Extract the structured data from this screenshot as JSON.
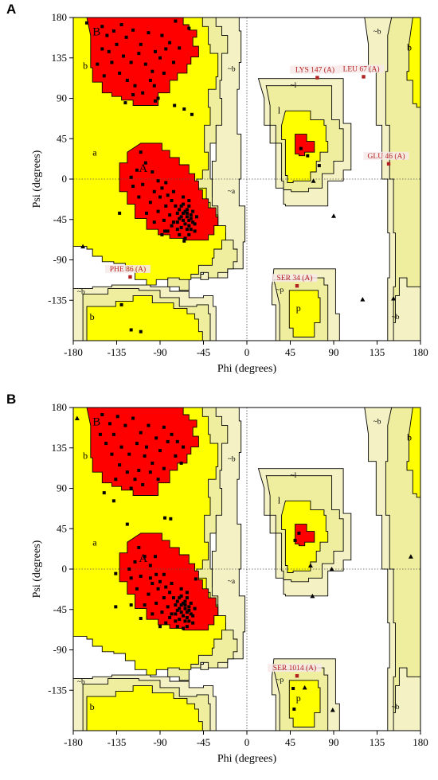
{
  "colors": {
    "core": "#ff0000",
    "allowed": "#ffff00",
    "generous": "#eeee9e",
    "generous_pale": "#f4f2c4",
    "outlier": "#b22222",
    "point": "#000000"
  },
  "chart_data": [
    {
      "type": "scatter",
      "panel_label": "A",
      "xlabel": "Phi (degrees)",
      "ylabel": "Psi (degrees)",
      "xlim": [
        -180,
        180
      ],
      "ylim": [
        -180,
        180
      ],
      "xticks": [
        "-180",
        "-135",
        "-90",
        "-45",
        "0",
        "45",
        "90",
        "135",
        "180"
      ],
      "yticks": [
        "180",
        "135",
        "90",
        "45",
        "0",
        "-45",
        "-90",
        "-135"
      ],
      "region_labels": [
        {
          "text": "B",
          "phi": -160,
          "psi": 160,
          "size": "large"
        },
        {
          "text": "b",
          "phi": -170,
          "psi": 123,
          "size": "normal"
        },
        {
          "text": "a",
          "phi": -160,
          "psi": 26,
          "size": "normal"
        },
        {
          "text": "A",
          "phi": -112,
          "psi": 8,
          "size": "large"
        },
        {
          "text": "~b",
          "phi": -20,
          "psi": 120,
          "size": "small"
        },
        {
          "text": "~a",
          "phi": -20,
          "psi": -16,
          "size": "small"
        },
        {
          "text": "~l",
          "phi": 45,
          "psi": 102,
          "size": "small"
        },
        {
          "text": "l",
          "phi": 32,
          "psi": 73,
          "size": "normal"
        },
        {
          "text": "~b",
          "phi": -176,
          "psi": -128,
          "size": "small"
        },
        {
          "text": "b",
          "phi": -163,
          "psi": -157,
          "size": "normal"
        },
        {
          "text": "~p",
          "phi": 30,
          "psi": -126,
          "size": "small"
        },
        {
          "text": "p",
          "phi": 51,
          "psi": -147,
          "size": "normal"
        },
        {
          "text": "~b",
          "phi": 131,
          "psi": 162,
          "size": "small"
        },
        {
          "text": "b",
          "phi": 166,
          "psi": 143,
          "size": "normal"
        },
        {
          "text": "~b",
          "phi": 150,
          "psi": -156,
          "size": "small"
        }
      ],
      "outliers": [
        {
          "label": "LYS 147 (A)",
          "phi": 73,
          "psi": 113
        },
        {
          "label": "LEU 67 (A)",
          "phi": 121,
          "psi": 114
        },
        {
          "label": "GLU 46 (A)",
          "phi": 147,
          "psi": 17
        },
        {
          "label": "PHE 86 (A)",
          "phi": -121,
          "psi": -109
        },
        {
          "label": "SER 34 (A)",
          "phi": 52,
          "psi": -119
        }
      ],
      "triangles": [
        {
          "phi": 90,
          "psi": -41
        },
        {
          "phi": 120,
          "psi": -134
        },
        {
          "phi": 152,
          "psi": -133
        },
        {
          "phi": -170,
          "psi": -75
        },
        {
          "phi": 69,
          "psi": -2
        }
      ],
      "residues_core": [
        [
          -150,
          170
        ],
        [
          -145,
          160
        ],
        [
          -138,
          165
        ],
        [
          -130,
          172
        ],
        [
          -125,
          158
        ],
        [
          -118,
          166
        ],
        [
          -110,
          150
        ],
        [
          -102,
          163
        ],
        [
          -95,
          142
        ],
        [
          -88,
          160
        ],
        [
          -80,
          152
        ],
        [
          -74,
          176
        ],
        [
          -143,
          142
        ],
        [
          -135,
          150
        ],
        [
          -128,
          137
        ],
        [
          -120,
          130
        ],
        [
          -112,
          140
        ],
        [
          -105,
          128
        ],
        [
          -98,
          120
        ],
        [
          -90,
          135
        ],
        [
          -84,
          145
        ],
        [
          -76,
          130
        ],
        [
          -70,
          146
        ],
        [
          -140,
          130
        ],
        [
          -132,
          118
        ],
        [
          -124,
          110
        ],
        [
          -116,
          104
        ],
        [
          -108,
          96
        ],
        [
          -100,
          110
        ],
        [
          -92,
          90
        ],
        [
          -86,
          118
        ],
        [
          -150,
          145
        ],
        [
          -155,
          128
        ],
        [
          -148,
          115
        ],
        [
          -126,
          85
        ],
        [
          -118,
          94
        ],
        [
          -96,
          104
        ],
        [
          -110,
          30
        ],
        [
          -105,
          18
        ],
        [
          -98,
          8
        ],
        [
          -92,
          -2
        ],
        [
          -88,
          -10
        ],
        [
          -82,
          -18
        ],
        [
          -78,
          -24
        ],
        [
          -74,
          -30
        ],
        [
          -70,
          -34
        ],
        [
          -66,
          -38
        ],
        [
          -62,
          -42
        ],
        [
          -60,
          -46
        ],
        [
          -64,
          -50
        ],
        [
          -68,
          -54
        ],
        [
          -58,
          -40
        ],
        [
          -56,
          -48
        ],
        [
          -64,
          -36
        ],
        [
          -70,
          -44
        ],
        [
          -72,
          -38
        ],
        [
          -66,
          -28
        ],
        [
          -60,
          -30
        ],
        [
          -62,
          -56
        ],
        [
          -58,
          -56
        ],
        [
          -76,
          -48
        ],
        [
          -80,
          -40
        ],
        [
          -84,
          -30
        ],
        [
          -90,
          -20
        ],
        [
          -96,
          -14
        ],
        [
          -86,
          -46
        ],
        [
          -92,
          -36
        ],
        [
          -100,
          -26
        ],
        [
          -108,
          -6
        ],
        [
          -114,
          10
        ],
        [
          -120,
          2
        ],
        [
          -70,
          -62
        ],
        [
          -64,
          -66
        ],
        [
          -72,
          -48
        ],
        [
          -68,
          -42
        ],
        [
          -62,
          -38
        ],
        [
          -60,
          -52
        ],
        [
          -66,
          -46
        ],
        [
          -58,
          -44
        ],
        [
          -54,
          -50
        ],
        [
          -62,
          -34
        ],
        [
          -68,
          -30
        ],
        [
          -72,
          -56
        ],
        [
          -78,
          -52
        ],
        [
          -82,
          -58
        ],
        [
          -88,
          -62
        ],
        [
          -96,
          -48
        ],
        [
          -104,
          -38
        ],
        [
          -112,
          -20
        ],
        [
          -118,
          -8
        ],
        [
          -84,
          -4
        ],
        [
          -76,
          -14
        ],
        [
          -66,
          -20
        ],
        [
          -60,
          -24
        ],
        [
          -56,
          -36
        ],
        [
          -52,
          -42
        ],
        [
          -54,
          -58
        ],
        [
          -60,
          -62
        ]
      ],
      "residues_allowed": [
        [
          -60,
          168
        ],
        [
          -95,
          87
        ],
        [
          -75,
          82
        ],
        [
          -65,
          78
        ],
        [
          -57,
          72
        ],
        [
          -130,
          -140
        ],
        [
          -120,
          -168
        ],
        [
          -110,
          -170
        ],
        [
          -166,
          174
        ],
        [
          56,
          34
        ],
        [
          63,
          26
        ],
        [
          75,
          15
        ],
        [
          -132,
          -38
        ],
        [
          -85,
          -58
        ],
        [
          -65,
          -69
        ]
      ]
    },
    {
      "type": "scatter",
      "panel_label": "B",
      "xlabel": "Phi (degrees)",
      "ylabel": "Psi (degrees)",
      "xlim": [
        -180,
        180
      ],
      "ylim": [
        -180,
        180
      ],
      "xticks": [
        "-180",
        "-135",
        "-90",
        "-45",
        "0",
        "45",
        "90",
        "135",
        "180"
      ],
      "yticks": [
        "180",
        "135",
        "90",
        "45",
        "0",
        "-45",
        "-90",
        "-135"
      ],
      "region_labels": [
        {
          "text": "B",
          "phi": -160,
          "psi": 160,
          "size": "large"
        },
        {
          "text": "b",
          "phi": -170,
          "psi": 123,
          "size": "normal"
        },
        {
          "text": "a",
          "phi": -160,
          "psi": 26,
          "size": "normal"
        },
        {
          "text": "A",
          "phi": -112,
          "psi": 8,
          "size": "large"
        },
        {
          "text": "~b",
          "phi": -20,
          "psi": 120,
          "size": "small"
        },
        {
          "text": "~a",
          "phi": -20,
          "psi": -16,
          "size": "small"
        },
        {
          "text": "~l",
          "phi": 45,
          "psi": 102,
          "size": "small"
        },
        {
          "text": "l",
          "phi": 32,
          "psi": 73,
          "size": "normal"
        },
        {
          "text": "~b",
          "phi": -176,
          "psi": -128,
          "size": "small"
        },
        {
          "text": "b",
          "phi": -163,
          "psi": -157,
          "size": "normal"
        },
        {
          "text": "~p",
          "phi": 30,
          "psi": -126,
          "size": "small"
        },
        {
          "text": "p",
          "phi": 51,
          "psi": -147,
          "size": "normal"
        },
        {
          "text": "~b",
          "phi": 131,
          "psi": 162,
          "size": "small"
        },
        {
          "text": "b",
          "phi": 166,
          "psi": 143,
          "size": "normal"
        },
        {
          "text": "~b",
          "phi": 150,
          "psi": -156,
          "size": "small"
        }
      ],
      "outliers": [
        {
          "label": "SER 1014 (A)",
          "phi": 52,
          "psi": -119
        }
      ],
      "triangles": [
        {
          "phi": -176,
          "psi": 168
        },
        {
          "phi": 60,
          "psi": -132
        },
        {
          "phi": 89,
          "psi": -157
        },
        {
          "phi": 170,
          "psi": 14
        },
        {
          "phi": 88,
          "psi": 0
        },
        {
          "phi": 66,
          "psi": 4
        },
        {
          "phi": 68,
          "psi": -30
        }
      ],
      "residues_core": [
        [
          -150,
          172
        ],
        [
          -142,
          162
        ],
        [
          -134,
          170
        ],
        [
          -126,
          160
        ],
        [
          -118,
          168
        ],
        [
          -110,
          152
        ],
        [
          -102,
          160
        ],
        [
          -94,
          146
        ],
        [
          -86,
          158
        ],
        [
          -78,
          150
        ],
        [
          -72,
          142
        ],
        [
          -66,
          136
        ],
        [
          -146,
          140
        ],
        [
          -138,
          150
        ],
        [
          -130,
          136
        ],
        [
          -122,
          128
        ],
        [
          -114,
          140
        ],
        [
          -106,
          126
        ],
        [
          -98,
          118
        ],
        [
          -90,
          132
        ],
        [
          -82,
          142
        ],
        [
          -74,
          126
        ],
        [
          -68,
          118
        ],
        [
          -140,
          128
        ],
        [
          -132,
          116
        ],
        [
          -124,
          108
        ],
        [
          -116,
          100
        ],
        [
          -108,
          94
        ],
        [
          -100,
          108
        ],
        [
          -92,
          100
        ],
        [
          -86,
          112
        ],
        [
          -152,
          150
        ],
        [
          -136,
          100
        ],
        [
          -120,
          90
        ],
        [
          -112,
          110
        ],
        [
          -104,
          136
        ],
        [
          -112,
          24
        ],
        [
          -106,
          14
        ],
        [
          -100,
          4
        ],
        [
          -94,
          -6
        ],
        [
          -90,
          -14
        ],
        [
          -84,
          -20
        ],
        [
          -80,
          -26
        ],
        [
          -76,
          -32
        ],
        [
          -72,
          -36
        ],
        [
          -68,
          -40
        ],
        [
          -64,
          -44
        ],
        [
          -62,
          -48
        ],
        [
          -66,
          -52
        ],
        [
          -70,
          -56
        ],
        [
          -60,
          -42
        ],
        [
          -58,
          -50
        ],
        [
          -66,
          -38
        ],
        [
          -72,
          -46
        ],
        [
          -74,
          -40
        ],
        [
          -68,
          -30
        ],
        [
          -62,
          -32
        ],
        [
          -64,
          -58
        ],
        [
          -60,
          -58
        ],
        [
          -78,
          -50
        ],
        [
          -82,
          -42
        ],
        [
          -86,
          -32
        ],
        [
          -92,
          -22
        ],
        [
          -98,
          -16
        ],
        [
          -88,
          -48
        ],
        [
          -94,
          -38
        ],
        [
          -102,
          -28
        ],
        [
          -110,
          -8
        ],
        [
          -116,
          8
        ],
        [
          -122,
          0
        ],
        [
          -72,
          -64
        ],
        [
          -66,
          -66
        ],
        [
          -74,
          -50
        ],
        [
          -70,
          -44
        ],
        [
          -64,
          -40
        ],
        [
          -62,
          -54
        ],
        [
          -68,
          -48
        ],
        [
          -60,
          -46
        ],
        [
          -56,
          -52
        ],
        [
          -64,
          -36
        ],
        [
          -70,
          -32
        ],
        [
          -74,
          -58
        ],
        [
          -80,
          -54
        ],
        [
          -84,
          -60
        ],
        [
          -90,
          -64
        ],
        [
          -98,
          -50
        ],
        [
          -106,
          -40
        ],
        [
          -114,
          -22
        ],
        [
          -120,
          -10
        ],
        [
          -86,
          -6
        ],
        [
          -78,
          -16
        ],
        [
          -68,
          -22
        ],
        [
          -62,
          -26
        ],
        [
          -58,
          -38
        ],
        [
          -54,
          -44
        ],
        [
          -56,
          -60
        ],
        [
          -62,
          -64
        ],
        [
          -120,
          -40
        ],
        [
          -110,
          -55
        ]
      ],
      "residues_allowed": [
        [
          -148,
          85
        ],
        [
          -138,
          76
        ],
        [
          -85,
          57
        ],
        [
          -79,
          56
        ],
        [
          -124,
          50
        ],
        [
          -95,
          14
        ],
        [
          -136,
          -5
        ],
        [
          -136,
          -42
        ],
        [
          -100,
          -10
        ],
        [
          -53,
          -11
        ],
        [
          50,
          32
        ],
        [
          54,
          40
        ],
        [
          48,
          -133
        ],
        [
          49,
          -156
        ]
      ]
    }
  ]
}
